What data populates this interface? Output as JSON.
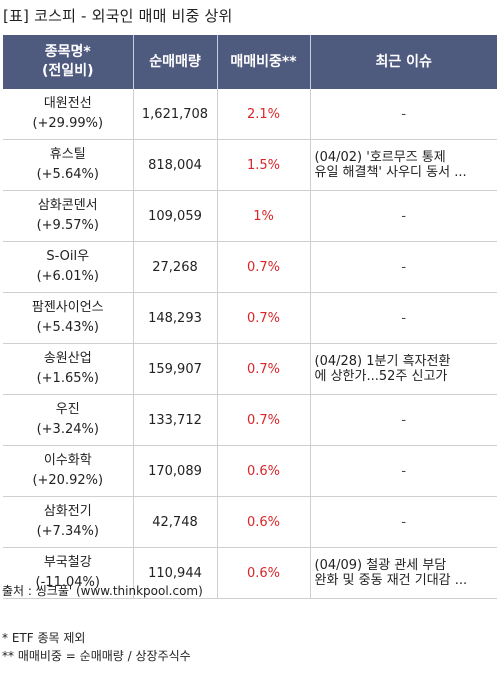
{
  "title": "[표] 코스피 - 외국인 매매 비중 상위",
  "headers": {
    "name_line1": "종목명*",
    "name_line2": "(전일비)",
    "volume": "순매매량",
    "ratio": "매매비중**",
    "issue": "최근 이슈"
  },
  "rows": [
    {
      "name": "대원전선",
      "change": "(+29.99%)",
      "volume": "1,621,708",
      "ratio": "2.1%",
      "issue1": "-",
      "issue2": ""
    },
    {
      "name": "휴스틸",
      "change": "(+5.64%)",
      "volume": "818,004",
      "ratio": "1.5%",
      "issue1": "(04/02) '호르무즈 통제",
      "issue2": " 유일 해결책' 사우디 동서 ..."
    },
    {
      "name": "삼화콘덴서",
      "change": "(+9.57%)",
      "volume": "109,059",
      "ratio": "1%",
      "issue1": "-",
      "issue2": ""
    },
    {
      "name": "S-Oil우",
      "change": "(+6.01%)",
      "volume": "27,268",
      "ratio": "0.7%",
      "issue1": "-",
      "issue2": ""
    },
    {
      "name": "팜젠사이언스",
      "change": "(+5.43%)",
      "volume": "148,293",
      "ratio": "0.7%",
      "issue1": "-",
      "issue2": ""
    },
    {
      "name": "송원산업",
      "change": "(+1.65%)",
      "volume": "159,907",
      "ratio": "0.7%",
      "issue1": "(04/28) 1분기 흑자전환",
      "issue2": "에 상한가...52주 신고가"
    },
    {
      "name": "우진",
      "change": "(+3.24%)",
      "volume": "133,712",
      "ratio": "0.7%",
      "issue1": "-",
      "issue2": ""
    },
    {
      "name": "이수화학",
      "change": "(+20.92%)",
      "volume": "170,089",
      "ratio": "0.6%",
      "issue1": "-",
      "issue2": ""
    },
    {
      "name": "삼화전기",
      "change": "(+7.34%)",
      "volume": "42,748",
      "ratio": "0.6%",
      "issue1": "-",
      "issue2": ""
    },
    {
      "name": "부국철강",
      "change": "(-11.04%)",
      "volume": "110,944",
      "ratio": "0.6%",
      "issue1": "(04/09) 철광 관세 부담",
      "issue2": " 완화 및 중동 재건 기대감 ..."
    }
  ],
  "footer": {
    "source": "출처 : 씽크풀' (www.thinkpool.com)",
    "note1": "* ETF 종목 제외",
    "note2": "** 매매비중 = 순매매량 / 상장주식수"
  },
  "colors": {
    "header_bg": "#4f5a7f",
    "ratio_red": "#d8262a"
  }
}
